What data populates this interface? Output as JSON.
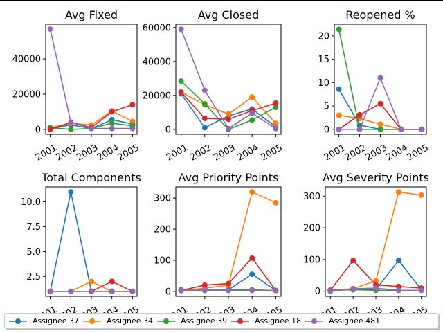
{
  "colors": {
    "Assignee 37": "#1f77b4",
    "Assignee 34": "#ff7f0e",
    "Assignee 39": "#2ca02c",
    "Assignee 18": "#d62728",
    "Assignee 481": "#9467bd"
  },
  "legend": {
    "placement": "bottom",
    "entries": [
      "Assignee 37",
      "Assignee 34",
      "Assignee 39",
      "Assignee 18",
      "Assignee 481"
    ]
  },
  "chart_data": [
    {
      "type": "line",
      "title": "Avg Fixed",
      "x": [
        "2001",
        "2002",
        "2003",
        "2004",
        "2005"
      ],
      "ylim": [
        -2800,
        59700
      ],
      "yticks": [
        0,
        20000,
        40000
      ],
      "ytick_labels": [
        "0",
        "20000",
        "40000"
      ],
      "series": [
        {
          "name": "Assignee 37",
          "values": [
            500,
            2500,
            500,
            5500,
            3000
          ]
        },
        {
          "name": "Assignee 34",
          "values": [
            1000,
            3500,
            2500,
            10500,
            4500
          ]
        },
        {
          "name": "Assignee 39",
          "values": [
            1000,
            0,
            500,
            3500,
            2000
          ]
        },
        {
          "name": "Assignee 18",
          "values": [
            0,
            4000,
            1000,
            10000,
            14000
          ]
        },
        {
          "name": "Assignee 481",
          "values": [
            56900,
            4000,
            500,
            500,
            500
          ]
        }
      ]
    },
    {
      "type": "line",
      "title": "Avg Closed",
      "x": [
        "2001",
        "2002",
        "2003",
        "2004",
        "2005"
      ],
      "ylim": [
        -2900,
        62000
      ],
      "yticks": [
        0,
        20000,
        40000,
        60000
      ],
      "ytick_labels": [
        "0",
        "20000",
        "40000",
        "60000"
      ],
      "series": [
        {
          "name": "Assignee 37",
          "values": [
            21000,
            1000,
            8000,
            12000,
            1500
          ]
        },
        {
          "name": "Assignee 34",
          "values": [
            22000,
            14500,
            9000,
            19000,
            3500
          ]
        },
        {
          "name": "Assignee 39",
          "values": [
            28500,
            15000,
            0,
            5500,
            13000
          ]
        },
        {
          "name": "Assignee 18",
          "values": [
            22000,
            6500,
            6000,
            11000,
            15500
          ]
        },
        {
          "name": "Assignee 481",
          "values": [
            59000,
            23000,
            500,
            9500,
            500
          ]
        }
      ]
    },
    {
      "type": "line",
      "title": "Reopened %",
      "x": [
        "2001",
        "2002",
        "2003",
        "2004",
        "2005"
      ],
      "ylim": [
        -1.07,
        22.5
      ],
      "yticks": [
        0,
        5,
        10,
        15,
        20
      ],
      "ytick_labels": [
        "0",
        "5",
        "10",
        "15",
        "20"
      ],
      "series": [
        {
          "name": "Assignee 37",
          "values": [
            8.6,
            0.9,
            0,
            0,
            0
          ]
        },
        {
          "name": "Assignee 34",
          "values": [
            3.0,
            2.3,
            1.1,
            0,
            0
          ]
        },
        {
          "name": "Assignee 39",
          "values": [
            21.4,
            0,
            0,
            0,
            0
          ]
        },
        {
          "name": "Assignee 18",
          "values": [
            0,
            3.1,
            5.5,
            0,
            0
          ]
        },
        {
          "name": "Assignee 481",
          "values": [
            0,
            0,
            11.0,
            0,
            0
          ]
        }
      ]
    },
    {
      "type": "line",
      "title": "Total Components",
      "x": [
        "2001",
        "2002",
        "2003",
        "2004",
        "2005"
      ],
      "ylim": [
        0.5,
        11.5
      ],
      "yticks": [
        2.5,
        5.0,
        7.5,
        10.0
      ],
      "ytick_labels": [
        "2.5",
        "5.0",
        "7.5",
        "10.0"
      ],
      "series": [
        {
          "name": "Assignee 37",
          "values": [
            1,
            11,
            1,
            1,
            1
          ]
        },
        {
          "name": "Assignee 34",
          "values": [
            1,
            1,
            2,
            1,
            1
          ]
        },
        {
          "name": "Assignee 39",
          "values": [
            1,
            1,
            1,
            1,
            1
          ]
        },
        {
          "name": "Assignee 18",
          "values": [
            1,
            1,
            1,
            2,
            1
          ]
        },
        {
          "name": "Assignee 481",
          "values": [
            1,
            1,
            1,
            1,
            1
          ]
        }
      ]
    },
    {
      "type": "line",
      "title": "Avg Priority Points",
      "x": [
        "2001",
        "2002",
        "2003",
        "2004",
        "2005"
      ],
      "ylim": [
        -16,
        336
      ],
      "yticks": [
        0,
        100,
        200,
        300
      ],
      "ytick_labels": [
        "0",
        "100",
        "200",
        "300"
      ],
      "series": [
        {
          "name": "Assignee 37",
          "values": [
            3,
            5,
            5,
            55,
            3
          ]
        },
        {
          "name": "Assignee 34",
          "values": [
            3,
            10,
            20,
            320,
            285
          ]
        },
        {
          "name": "Assignee 39",
          "values": [
            5,
            3,
            5,
            5,
            3
          ]
        },
        {
          "name": "Assignee 18",
          "values": [
            3,
            20,
            25,
            107,
            3
          ]
        },
        {
          "name": "Assignee 481",
          "values": [
            3,
            5,
            3,
            3,
            3
          ]
        }
      ]
    },
    {
      "type": "line",
      "title": "Avg Severity Points",
      "x": [
        "2001",
        "2002",
        "2003",
        "2004",
        "2005"
      ],
      "ylim": [
        -16,
        329
      ],
      "yticks": [
        0,
        100,
        200,
        300
      ],
      "ytick_labels": [
        "0",
        "100",
        "200",
        "300"
      ],
      "series": [
        {
          "name": "Assignee 37",
          "values": [
            3,
            5,
            5,
            97,
            5
          ]
        },
        {
          "name": "Assignee 34",
          "values": [
            3,
            8,
            33,
            313,
            303
          ]
        },
        {
          "name": "Assignee 39",
          "values": [
            3,
            5,
            3,
            3,
            3
          ]
        },
        {
          "name": "Assignee 18",
          "values": [
            3,
            97,
            20,
            15,
            10
          ]
        },
        {
          "name": "Assignee 481",
          "values": [
            0,
            8,
            10,
            3,
            3
          ]
        }
      ]
    }
  ]
}
